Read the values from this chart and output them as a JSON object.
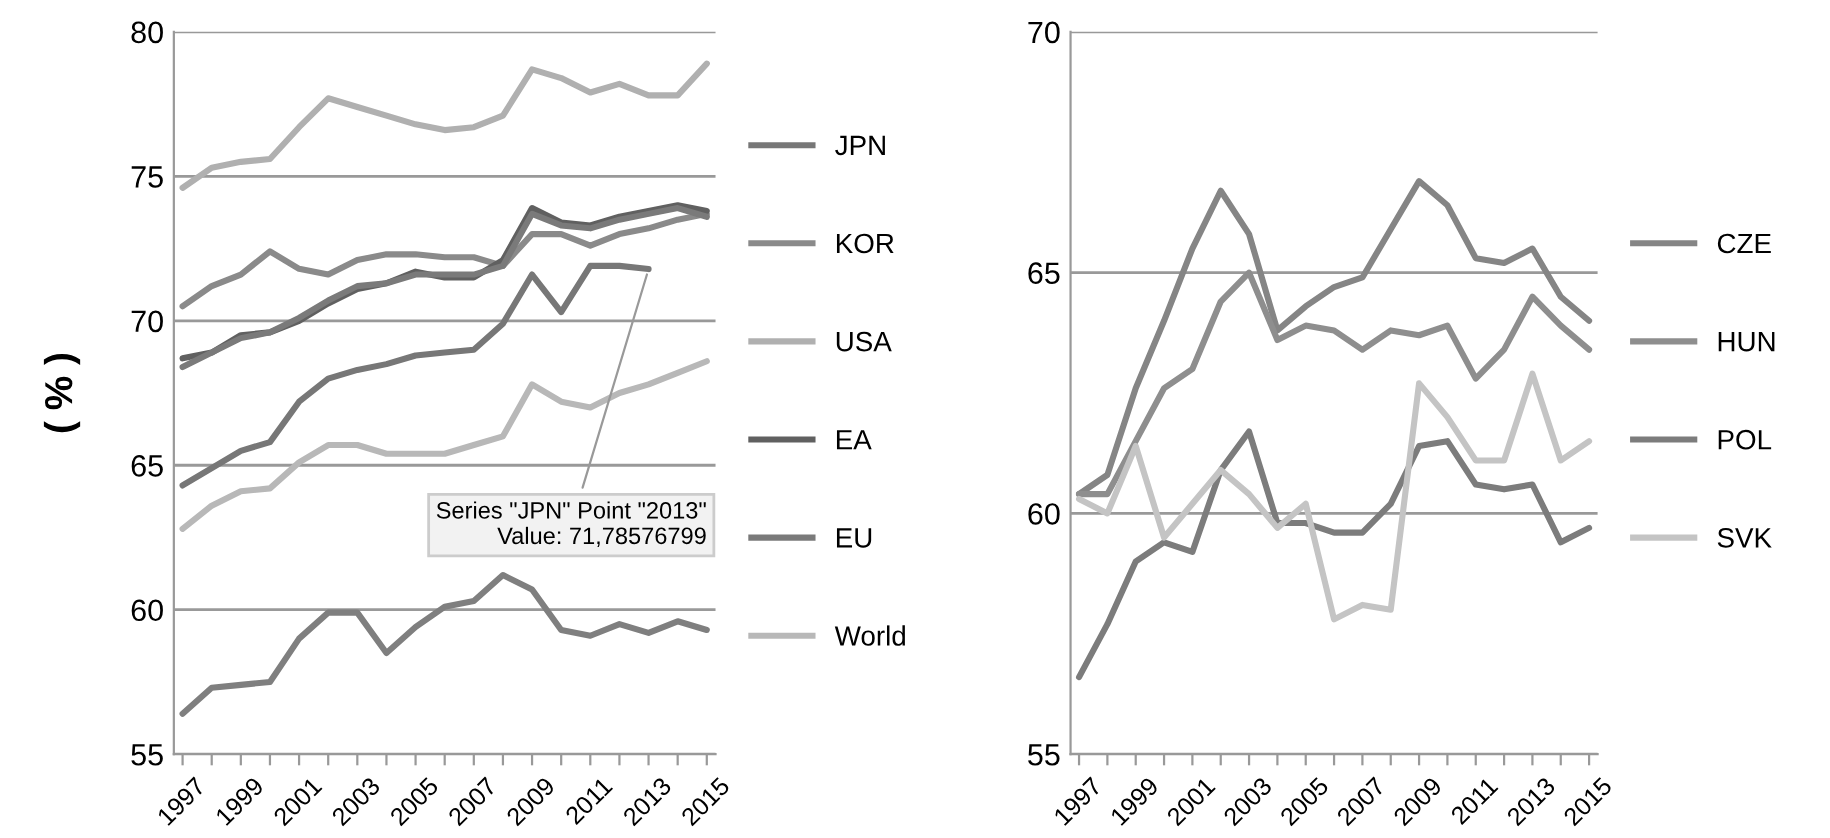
{
  "chart_data": [
    {
      "type": "line",
      "ylabel": "( % )",
      "categories": [
        "1997",
        null,
        "1999",
        null,
        "2001",
        null,
        "2003",
        null,
        "2005",
        null,
        "2007",
        null,
        "2009",
        null,
        "2011",
        null,
        "2013",
        null,
        "2015"
      ],
      "ylim": [
        55,
        80
      ],
      "yticks": [
        55,
        60,
        65,
        70,
        75,
        80
      ],
      "grid": "y",
      "legend": "right",
      "annotations": [
        {
          "text": "Series \"JPN\" Point \"2013\"\nValue: 71,78576799",
          "x": "2013",
          "y": 71.78576799
        }
      ],
      "series": [
        {
          "name": "JPN",
          "color": "#777777",
          "values": [
            64.3,
            64.9,
            65.5,
            65.8,
            67.2,
            68.0,
            68.3,
            68.5,
            68.8,
            68.9,
            69.0,
            69.9,
            71.6,
            70.3,
            71.9,
            71.9,
            71.79,
            null,
            null
          ]
        },
        {
          "name": "KOR",
          "color": "#8a8a8a",
          "values": [
            70.5,
            71.2,
            71.6,
            72.4,
            71.8,
            71.6,
            72.1,
            72.3,
            72.3,
            72.2,
            72.2,
            71.9,
            73.0,
            73.0,
            72.6,
            73.0,
            73.2,
            73.5,
            73.7
          ]
        },
        {
          "color": "#7f7f7f",
          "values": [
            56.4,
            57.3,
            57.4,
            57.5,
            59.0,
            59.9,
            59.9,
            58.5,
            59.4,
            60.1,
            60.3,
            61.2,
            60.7,
            59.3,
            59.1,
            59.5,
            59.2,
            59.6,
            59.3
          ]
        },
        {
          "name": "USA",
          "color": "#b0b0b0",
          "values": [
            74.6,
            75.3,
            75.5,
            75.6,
            76.7,
            77.7,
            77.4,
            77.1,
            76.8,
            76.6,
            76.7,
            77.1,
            78.7,
            78.4,
            77.9,
            78.2,
            77.8,
            77.8,
            78.9
          ]
        },
        {
          "name": "EA",
          "color": "#606060",
          "values": [
            68.7,
            68.9,
            69.5,
            69.6,
            70.0,
            70.6,
            71.1,
            71.3,
            71.7,
            71.5,
            71.5,
            72.1,
            73.9,
            73.4,
            73.3,
            73.6,
            73.8,
            74.0,
            73.8
          ]
        },
        {
          "name": "EU",
          "color": "#7a7a7a",
          "values": [
            68.4,
            68.9,
            69.4,
            69.6,
            70.1,
            70.7,
            71.2,
            71.3,
            71.6,
            71.6,
            71.6,
            71.9,
            73.7,
            73.3,
            73.2,
            73.5,
            73.7,
            73.9,
            73.6
          ]
        },
        {
          "name": "World",
          "color": "#b8b8b8",
          "values": [
            62.8,
            63.6,
            64.1,
            64.2,
            65.1,
            65.7,
            65.7,
            65.4,
            65.4,
            65.4,
            65.7,
            66.0,
            67.8,
            67.2,
            67.0,
            67.5,
            67.8,
            68.2,
            68.6
          ]
        }
      ]
    },
    {
      "type": "line",
      "categories": [
        "1997",
        null,
        "1999",
        null,
        "2001",
        null,
        "2003",
        null,
        "2005",
        null,
        "2007",
        null,
        "2009",
        null,
        "2011",
        null,
        "2013",
        null,
        "2015"
      ],
      "ylim": [
        55,
        70
      ],
      "yticks": [
        55,
        60,
        65,
        70
      ],
      "grid": "y",
      "legend": "right",
      "series": [
        {
          "name": "CZE",
          "color": "#858585",
          "values": [
            60.4,
            60.8,
            62.6,
            64.0,
            65.5,
            66.7,
            65.8,
            63.8,
            64.3,
            64.7,
            64.9,
            65.9,
            66.9,
            66.4,
            65.3,
            65.2,
            65.5,
            64.5,
            64.0
          ]
        },
        {
          "name": "HUN",
          "color": "#8e8e8e",
          "values": [
            60.4,
            60.4,
            61.5,
            62.6,
            63.0,
            64.4,
            65.0,
            63.6,
            63.9,
            63.8,
            63.4,
            63.8,
            63.7,
            63.9,
            62.8,
            63.4,
            64.5,
            63.9,
            63.4
          ]
        },
        {
          "name": "POL",
          "color": "#7c7c7c",
          "values": [
            56.6,
            57.7,
            59.0,
            59.4,
            59.2,
            60.9,
            61.7,
            59.8,
            59.8,
            59.6,
            59.6,
            60.2,
            61.4,
            61.5,
            60.6,
            60.5,
            60.6,
            59.4,
            59.7
          ]
        },
        {
          "name": "SVK",
          "color": "#c4c4c4",
          "values": [
            60.3,
            60.0,
            61.4,
            59.5,
            60.2,
            60.9,
            60.4,
            59.7,
            60.2,
            57.8,
            58.1,
            58.0,
            62.7,
            62.0,
            61.1,
            61.1,
            62.9,
            61.1,
            61.5
          ]
        }
      ]
    }
  ]
}
